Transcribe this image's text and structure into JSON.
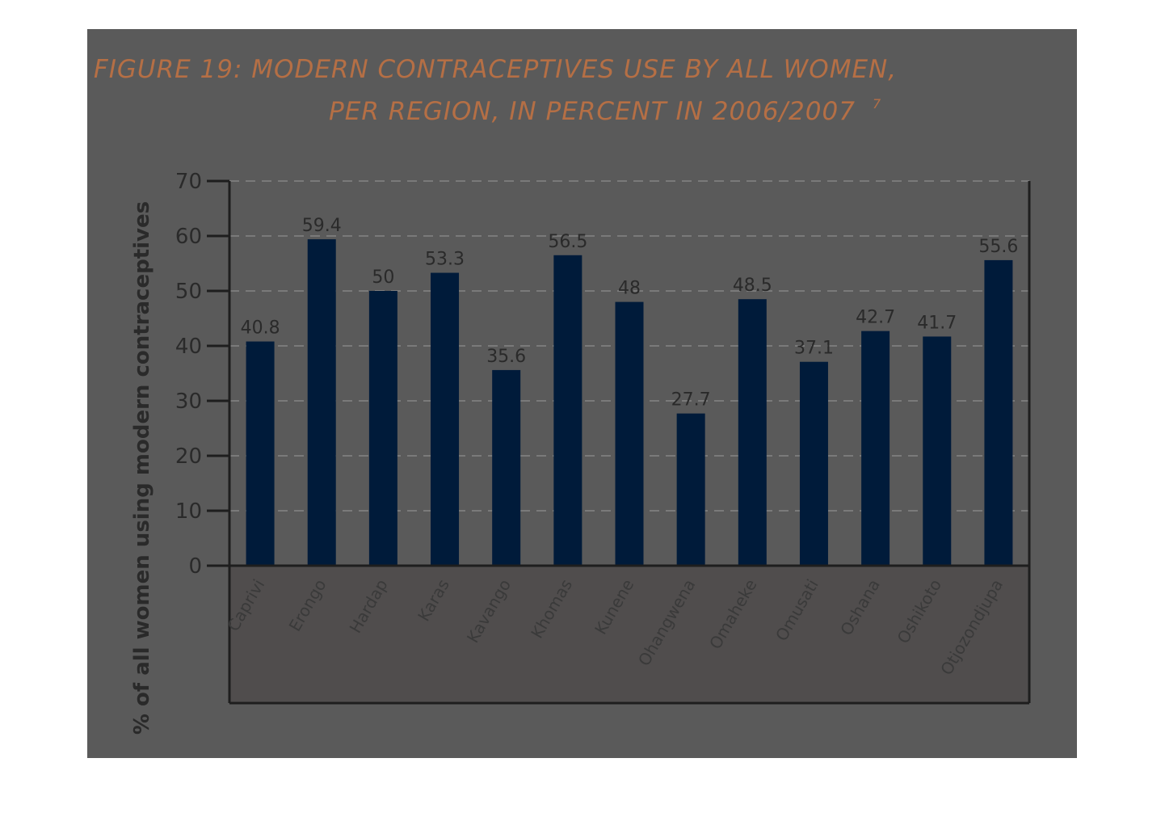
{
  "chart_data": {
    "type": "bar",
    "title_lines": [
      "FIGURE 19: MODERN CONTRACEPTIVES USE BY ALL WOMEN,",
      "PER REGION, IN PERCENT IN 2006/2007"
    ],
    "title_superscript": "7",
    "ylabel": "% of all women using modern contraceptives",
    "xlabel": "",
    "categories": [
      "Caprivi",
      "Erongo",
      "Hardap",
      "Karas",
      "Kavango",
      "Khomas",
      "Kunene",
      "Ohangwena",
      "Omaheke",
      "Omusati",
      "Oshana",
      "Oshikoto",
      "Otjozondjupa"
    ],
    "values": [
      40.8,
      59.4,
      50,
      53.3,
      35.6,
      56.5,
      48,
      27.7,
      48.5,
      37.1,
      42.7,
      41.7,
      55.6
    ],
    "value_labels": [
      "40.8",
      "59.4",
      "50",
      "53.3",
      "35.6",
      "56.5",
      "48",
      "27.7",
      "48.5",
      "37.1",
      "42.7",
      "41.7",
      "55.6"
    ],
    "ylim": [
      0,
      70
    ],
    "yticks": [
      "0",
      "10",
      "20",
      "30",
      "40",
      "50",
      "60",
      "70"
    ],
    "grid": true,
    "legend": "none",
    "colors": {
      "bar": "#001b3a",
      "background": "#5a5a5a",
      "lower_panel": "#504d4d",
      "title": "#b56f45",
      "gridline": "#7a7a7a"
    }
  }
}
